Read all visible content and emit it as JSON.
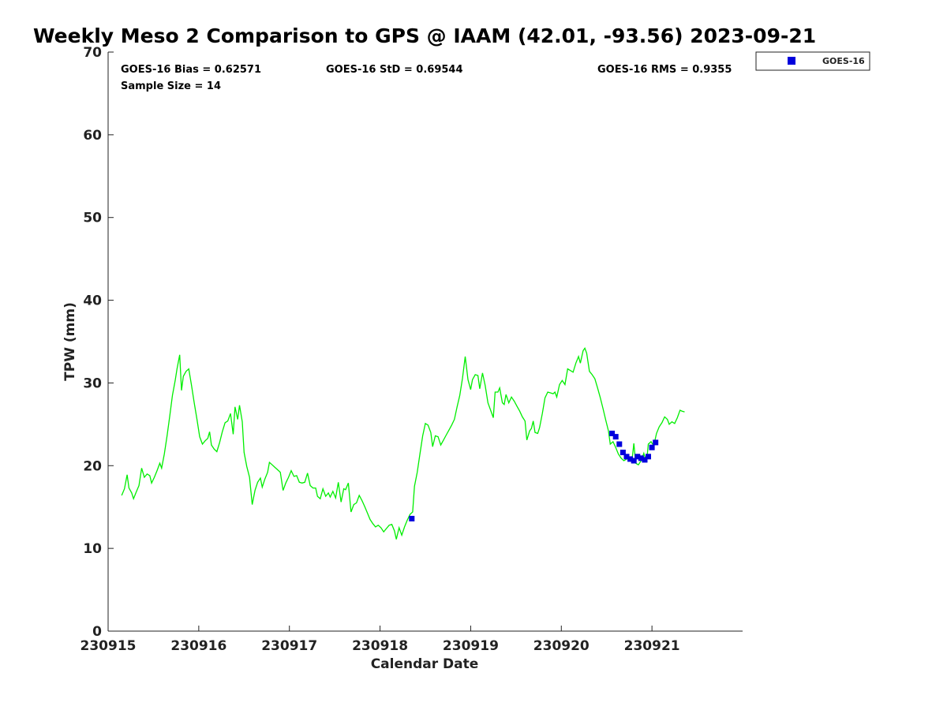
{
  "chart_data": {
    "type": "line",
    "title": "Weekly Meso 2 Comparison to GPS @ IAAM (42.01, -93.56) 2023-09-21",
    "xlabel": "Calendar Date",
    "ylabel": "TPW (mm)",
    "xlim": [
      230915,
      230922
    ],
    "ylim": [
      0,
      70
    ],
    "x_ticks": [
      "230915",
      "230916",
      "230917",
      "230918",
      "230919",
      "230920",
      "230921"
    ],
    "y_ticks": [
      "0",
      "10",
      "20",
      "30",
      "40",
      "50",
      "60",
      "70"
    ],
    "stats": {
      "bias": "GOES-16 Bias = 0.62571",
      "std": "GOES-16 StD = 0.69544",
      "rms": "GOES-16 RMS = 0.9355",
      "sample": "Sample Size = 14"
    },
    "legend": {
      "placement": "top-right-outside",
      "entries": [
        "GOES-16"
      ]
    },
    "colors": {
      "gps_line": "#00ee00",
      "goes": "#0000dd"
    },
    "gps_line": [
      [
        230915.15,
        16.4
      ],
      [
        230915.18,
        17.2
      ],
      [
        230915.21,
        18.9
      ],
      [
        230915.23,
        17.3
      ],
      [
        230915.26,
        16.7
      ],
      [
        230915.28,
        16.0
      ],
      [
        230915.31,
        16.8
      ],
      [
        230915.34,
        17.6
      ],
      [
        230915.37,
        19.7
      ],
      [
        230915.4,
        18.6
      ],
      [
        230915.43,
        19.0
      ],
      [
        230915.46,
        18.8
      ],
      [
        230915.48,
        17.9
      ],
      [
        230915.51,
        18.6
      ],
      [
        230915.54,
        19.4
      ],
      [
        230915.57,
        20.3
      ],
      [
        230915.59,
        19.7
      ],
      [
        230915.62,
        21.4
      ],
      [
        230915.65,
        23.6
      ],
      [
        230915.68,
        26.0
      ],
      [
        230915.71,
        28.5
      ],
      [
        230915.74,
        30.3
      ],
      [
        230915.76,
        31.7
      ],
      [
        230915.79,
        33.4
      ],
      [
        230915.81,
        29.1
      ],
      [
        230915.83,
        30.8
      ],
      [
        230915.86,
        31.4
      ],
      [
        230915.89,
        31.7
      ],
      [
        230915.92,
        29.7
      ],
      [
        230915.95,
        27.6
      ],
      [
        230915.98,
        25.6
      ],
      [
        230916.01,
        23.5
      ],
      [
        230916.04,
        22.6
      ],
      [
        230916.07,
        23.0
      ],
      [
        230916.1,
        23.3
      ],
      [
        230916.12,
        24.1
      ],
      [
        230916.14,
        22.5
      ],
      [
        230916.17,
        22.0
      ],
      [
        230916.2,
        21.7
      ],
      [
        230916.23,
        22.8
      ],
      [
        230916.26,
        24.1
      ],
      [
        230916.29,
        25.2
      ],
      [
        230916.32,
        25.4
      ],
      [
        230916.35,
        26.3
      ],
      [
        230916.38,
        23.8
      ],
      [
        230916.4,
        27.1
      ],
      [
        230916.43,
        25.6
      ],
      [
        230916.45,
        27.3
      ],
      [
        230916.48,
        25.3
      ],
      [
        230916.5,
        21.6
      ],
      [
        230916.53,
        19.9
      ],
      [
        230916.56,
        18.6
      ],
      [
        230916.59,
        15.3
      ],
      [
        230916.62,
        17.0
      ],
      [
        230916.65,
        18.0
      ],
      [
        230916.68,
        18.5
      ],
      [
        230916.7,
        17.4
      ],
      [
        230916.73,
        18.4
      ],
      [
        230916.76,
        19.2
      ],
      [
        230916.78,
        20.4
      ],
      [
        230916.81,
        20.1
      ],
      [
        230916.84,
        19.8
      ],
      [
        230916.87,
        19.5
      ],
      [
        230916.9,
        19.2
      ],
      [
        230916.93,
        17.0
      ],
      [
        230916.96,
        17.9
      ],
      [
        230916.99,
        18.6
      ],
      [
        230917.02,
        19.4
      ],
      [
        230917.05,
        18.7
      ],
      [
        230917.08,
        18.8
      ],
      [
        230917.11,
        18.0
      ],
      [
        230917.14,
        17.9
      ],
      [
        230917.17,
        18.0
      ],
      [
        230917.2,
        19.1
      ],
      [
        230917.23,
        17.6
      ],
      [
        230917.26,
        17.3
      ],
      [
        230917.29,
        17.3
      ],
      [
        230917.31,
        16.3
      ],
      [
        230917.34,
        16.0
      ],
      [
        230917.37,
        17.2
      ],
      [
        230917.4,
        16.3
      ],
      [
        230917.43,
        16.7
      ],
      [
        230917.45,
        16.2
      ],
      [
        230917.48,
        16.9
      ],
      [
        230917.51,
        16.1
      ],
      [
        230917.54,
        18.0
      ],
      [
        230917.57,
        15.6
      ],
      [
        230917.6,
        17.2
      ],
      [
        230917.62,
        17.1
      ],
      [
        230917.65,
        17.9
      ],
      [
        230917.68,
        14.4
      ],
      [
        230917.71,
        15.3
      ],
      [
        230917.74,
        15.5
      ],
      [
        230917.77,
        16.4
      ],
      [
        230917.8,
        15.8
      ],
      [
        230917.83,
        15.1
      ],
      [
        230917.86,
        14.3
      ],
      [
        230917.89,
        13.5
      ],
      [
        230917.92,
        13.0
      ],
      [
        230917.95,
        12.6
      ],
      [
        230917.98,
        12.8
      ],
      [
        230918.01,
        12.5
      ],
      [
        230918.04,
        12.0
      ],
      [
        230918.07,
        12.4
      ],
      [
        230918.1,
        12.8
      ],
      [
        230918.13,
        12.9
      ],
      [
        230918.16,
        12.1
      ],
      [
        230918.18,
        11.1
      ],
      [
        230918.21,
        12.5
      ],
      [
        230918.24,
        11.6
      ],
      [
        230918.27,
        12.6
      ],
      [
        230918.3,
        13.4
      ],
      [
        230918.33,
        14.1
      ],
      [
        230918.36,
        14.4
      ],
      [
        230918.38,
        17.5
      ],
      [
        230918.41,
        19.2
      ],
      [
        230918.44,
        21.4
      ],
      [
        230918.47,
        23.6
      ],
      [
        230918.5,
        25.1
      ],
      [
        230918.53,
        24.9
      ],
      [
        230918.56,
        24.0
      ],
      [
        230918.58,
        22.3
      ],
      [
        230918.61,
        23.6
      ],
      [
        230918.64,
        23.5
      ],
      [
        230918.67,
        22.5
      ],
      [
        230918.7,
        23.1
      ],
      [
        230918.73,
        23.7
      ],
      [
        230918.76,
        24.3
      ],
      [
        230918.79,
        24.9
      ],
      [
        230918.82,
        25.6
      ],
      [
        230918.85,
        27.1
      ],
      [
        230918.88,
        28.5
      ],
      [
        230918.91,
        30.6
      ],
      [
        230918.94,
        33.2
      ],
      [
        230918.97,
        30.4
      ],
      [
        230919.0,
        29.2
      ],
      [
        230919.02,
        30.4
      ],
      [
        230919.05,
        31.0
      ],
      [
        230919.08,
        30.9
      ],
      [
        230919.1,
        29.3
      ],
      [
        230919.13,
        31.2
      ],
      [
        230919.16,
        29.7
      ],
      [
        230919.19,
        27.6
      ],
      [
        230919.22,
        26.7
      ],
      [
        230919.25,
        25.8
      ],
      [
        230919.27,
        28.9
      ],
      [
        230919.3,
        28.9
      ],
      [
        230919.32,
        29.4
      ],
      [
        230919.35,
        27.6
      ],
      [
        230919.37,
        27.4
      ],
      [
        230919.39,
        28.6
      ],
      [
        230919.42,
        27.6
      ],
      [
        230919.45,
        28.3
      ],
      [
        230919.48,
        27.8
      ],
      [
        230919.51,
        27.2
      ],
      [
        230919.54,
        26.6
      ],
      [
        230919.57,
        25.9
      ],
      [
        230919.6,
        25.4
      ],
      [
        230919.62,
        23.1
      ],
      [
        230919.65,
        24.2
      ],
      [
        230919.67,
        24.5
      ],
      [
        230919.69,
        25.4
      ],
      [
        230919.71,
        24.0
      ],
      [
        230919.74,
        23.9
      ],
      [
        230919.76,
        24.6
      ],
      [
        230919.79,
        26.3
      ],
      [
        230919.82,
        28.2
      ],
      [
        230919.85,
        28.9
      ],
      [
        230919.88,
        28.8
      ],
      [
        230919.91,
        28.7
      ],
      [
        230919.93,
        28.9
      ],
      [
        230919.95,
        28.3
      ],
      [
        230919.98,
        29.8
      ],
      [
        230920.01,
        30.3
      ],
      [
        230920.04,
        29.8
      ],
      [
        230920.07,
        31.7
      ],
      [
        230920.1,
        31.5
      ],
      [
        230920.13,
        31.3
      ],
      [
        230920.16,
        32.4
      ],
      [
        230920.19,
        33.2
      ],
      [
        230920.21,
        32.4
      ],
      [
        230920.24,
        33.9
      ],
      [
        230920.26,
        34.2
      ],
      [
        230920.28,
        33.6
      ],
      [
        230920.31,
        31.4
      ],
      [
        230920.34,
        31.0
      ],
      [
        230920.37,
        30.5
      ],
      [
        230920.4,
        29.4
      ],
      [
        230920.43,
        28.2
      ],
      [
        230920.46,
        26.9
      ],
      [
        230920.49,
        25.5
      ],
      [
        230920.52,
        24.2
      ],
      [
        230920.54,
        22.6
      ],
      [
        230920.57,
        22.9
      ],
      [
        230920.6,
        22.2
      ],
      [
        230920.63,
        21.4
      ],
      [
        230920.66,
        20.9
      ],
      [
        230920.69,
        20.6
      ],
      [
        230920.72,
        20.8
      ],
      [
        230920.75,
        21.0
      ],
      [
        230920.78,
        20.7
      ],
      [
        230920.8,
        22.7
      ],
      [
        230920.82,
        20.3
      ],
      [
        230920.85,
        20.1
      ],
      [
        230920.88,
        20.6
      ],
      [
        230920.91,
        21.5
      ],
      [
        230920.94,
        20.4
      ],
      [
        230920.96,
        22.6
      ],
      [
        230920.99,
        22.9
      ],
      [
        230921.02,
        22.4
      ],
      [
        230921.05,
        23.9
      ],
      [
        230921.08,
        24.7
      ],
      [
        230921.11,
        25.2
      ],
      [
        230921.14,
        25.9
      ],
      [
        230921.17,
        25.6
      ],
      [
        230921.19,
        25.0
      ],
      [
        230921.22,
        25.3
      ],
      [
        230921.25,
        25.1
      ],
      [
        230921.28,
        25.8
      ],
      [
        230921.31,
        26.7
      ],
      [
        230921.33,
        26.6
      ],
      [
        230921.36,
        26.5
      ]
    ],
    "goes_points": [
      [
        230918.35,
        13.6
      ],
      [
        230920.56,
        23.9
      ],
      [
        230920.6,
        23.5
      ],
      [
        230920.64,
        22.6
      ],
      [
        230920.68,
        21.6
      ],
      [
        230920.72,
        21.1
      ],
      [
        230920.76,
        20.8
      ],
      [
        230920.8,
        20.6
      ],
      [
        230920.84,
        21.1
      ],
      [
        230920.88,
        20.9
      ],
      [
        230920.92,
        20.7
      ],
      [
        230920.96,
        21.1
      ],
      [
        230921.0,
        22.2
      ],
      [
        230921.04,
        22.8
      ]
    ]
  }
}
